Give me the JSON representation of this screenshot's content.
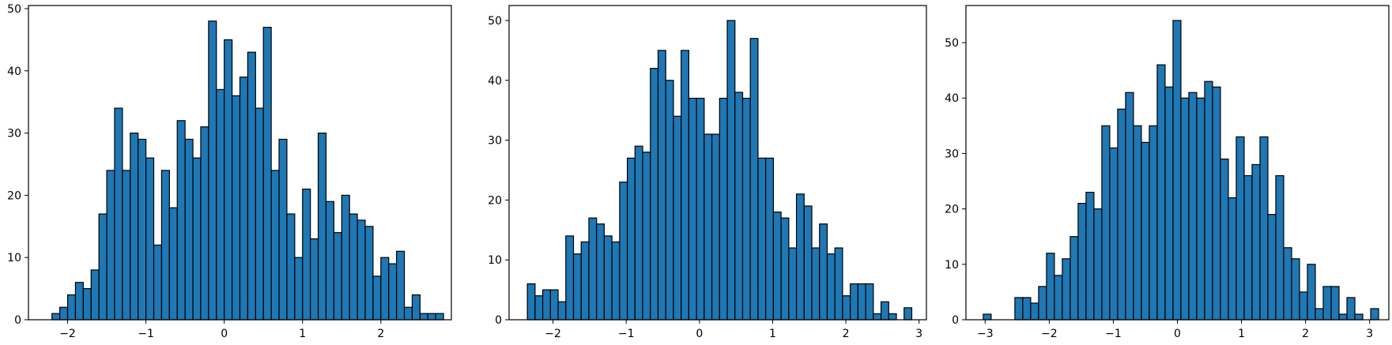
{
  "style": {
    "bar_fill": "#1f77b4",
    "bar_edge": "#000000",
    "axes_edge": "#000000",
    "background": "#ffffff"
  },
  "chart_data": [
    {
      "type": "histogram",
      "title": "",
      "xlabel": "",
      "ylabel": "",
      "xlim": [
        -2.5,
        2.9
      ],
      "ylim": [
        0,
        50.5
      ],
      "grid": false,
      "bin_start": -2.2,
      "bin_width": 0.1,
      "values": [
        1,
        2,
        4,
        6,
        5,
        8,
        17,
        24,
        34,
        24,
        30,
        29,
        26,
        12,
        24,
        18,
        32,
        29,
        26,
        31,
        48,
        37,
        45,
        36,
        39,
        43,
        34,
        47,
        24,
        29,
        17,
        10,
        21,
        13,
        30,
        19,
        14,
        20,
        17,
        16,
        15,
        7,
        10,
        9,
        11,
        2,
        4,
        1,
        1,
        1
      ],
      "xticks": [
        -2,
        -1,
        0,
        1,
        2
      ],
      "xtick_labels": [
        "−2",
        "−1",
        "0",
        "1",
        "2"
      ],
      "yticks": [
        0,
        10,
        20,
        30,
        40,
        50
      ],
      "ytick_labels": [
        "0",
        "10",
        "20",
        "30",
        "40",
        "50"
      ]
    },
    {
      "type": "histogram",
      "title": "",
      "xlabel": "",
      "ylabel": "",
      "xlim": [
        -2.6,
        3.1
      ],
      "ylim": [
        0,
        52.5
      ],
      "grid": false,
      "bin_start": -2.35,
      "bin_width": 0.105,
      "values": [
        6,
        4,
        5,
        5,
        3,
        14,
        11,
        13,
        17,
        16,
        14,
        13,
        23,
        27,
        29,
        28,
        42,
        45,
        40,
        34,
        45,
        37,
        37,
        31,
        31,
        37,
        50,
        38,
        37,
        47,
        27,
        27,
        18,
        17,
        12,
        21,
        19,
        12,
        16,
        11,
        12,
        4,
        6,
        6,
        6,
        1,
        3,
        1,
        0,
        2
      ],
      "xticks": [
        -2,
        -1,
        0,
        1,
        2,
        3
      ],
      "xtick_labels": [
        "−2",
        "−1",
        "0",
        "1",
        "2",
        "3"
      ],
      "yticks": [
        0,
        10,
        20,
        30,
        40,
        50
      ],
      "ytick_labels": [
        "0",
        "10",
        "20",
        "30",
        "40",
        "50"
      ]
    },
    {
      "type": "histogram",
      "title": "",
      "xlabel": "",
      "ylabel": "",
      "xlim": [
        -3.3,
        3.3
      ],
      "ylim": [
        0,
        56.7
      ],
      "grid": false,
      "bin_start": -3.03,
      "bin_width": 0.1234,
      "values": [
        1,
        0,
        0,
        0,
        4,
        4,
        3,
        6,
        12,
        8,
        11,
        15,
        21,
        23,
        20,
        35,
        31,
        38,
        41,
        35,
        32,
        35,
        46,
        42,
        54,
        40,
        41,
        40,
        43,
        42,
        29,
        22,
        33,
        26,
        28,
        33,
        19,
        26,
        13,
        11,
        5,
        10,
        2,
        6,
        6,
        1,
        4,
        1,
        0,
        2
      ],
      "xticks": [
        -3,
        -2,
        -1,
        0,
        1,
        2,
        3
      ],
      "xtick_labels": [
        "−3",
        "−2",
        "−1",
        "0",
        "1",
        "2",
        "3"
      ],
      "yticks": [
        0,
        10,
        20,
        30,
        40,
        50
      ],
      "ytick_labels": [
        "0",
        "10",
        "20",
        "30",
        "40",
        "50"
      ]
    }
  ]
}
